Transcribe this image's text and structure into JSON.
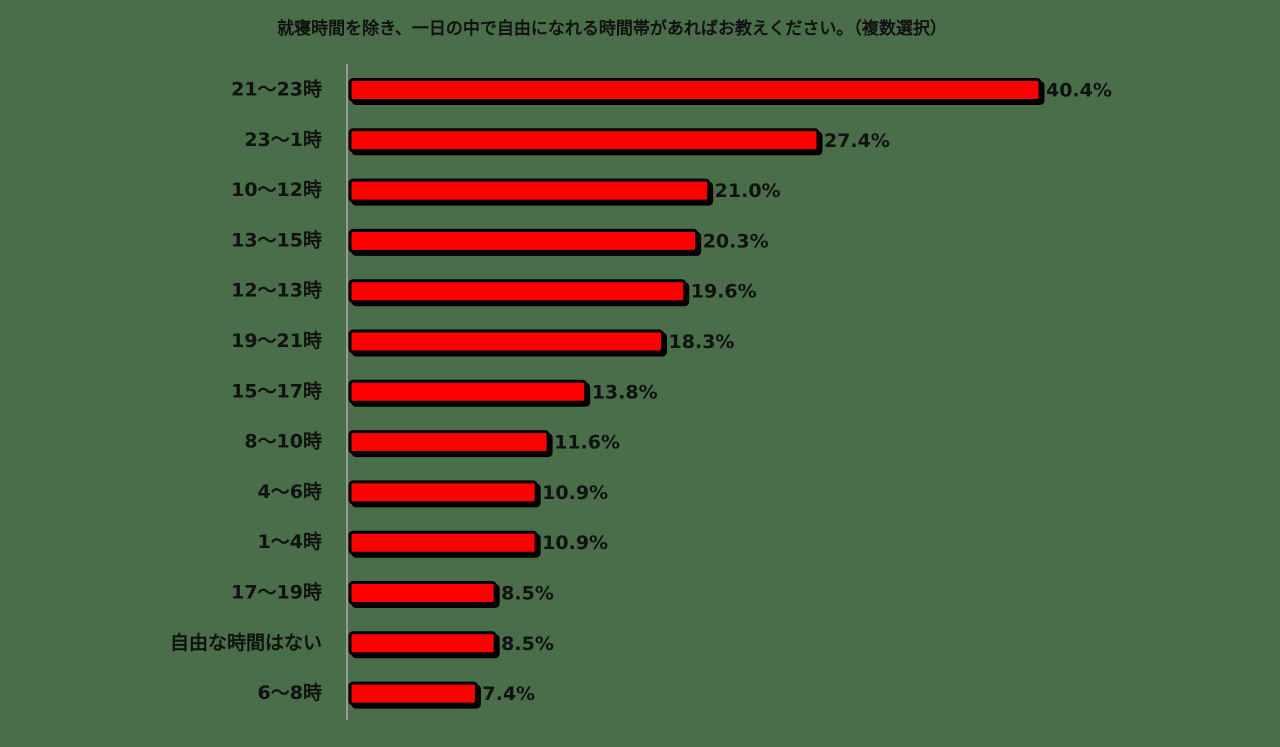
{
  "chart_data": {
    "type": "bar",
    "orientation": "horizontal",
    "title": "就寝時間を除き、一日の中で自由になれる時間帯があればお教えください。（複数選択）",
    "categories": [
      "21〜23時",
      "23〜1時",
      "10〜12時",
      "13〜15時",
      "12〜13時",
      "19〜21時",
      "15〜17時",
      "8〜10時",
      "4〜6時",
      "1〜4時",
      "17〜19時",
      "自由な時間はない",
      "6〜8時"
    ],
    "values": [
      40.4,
      27.4,
      21.0,
      20.3,
      19.6,
      18.3,
      13.8,
      11.6,
      10.9,
      10.9,
      8.5,
      8.5,
      7.4
    ],
    "value_labels": [
      "40.4%",
      "27.4%",
      "21.0%",
      "20.3%",
      "19.6%",
      "18.3%",
      "13.8%",
      "11.6%",
      "10.9%",
      "10.9%",
      "8.5%",
      "8.5%",
      "7.4%"
    ],
    "color": "#ff0000"
  }
}
